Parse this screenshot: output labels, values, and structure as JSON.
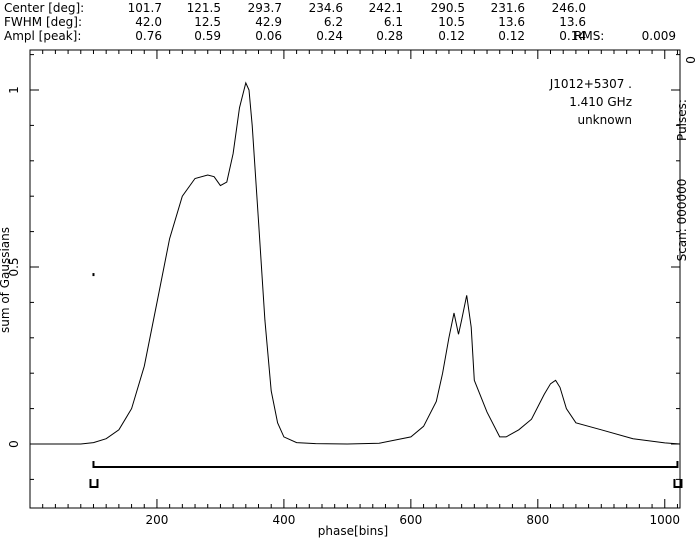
{
  "header": {
    "rows": [
      {
        "label": "Center [deg]:",
        "values": [
          "101.7",
          "121.5",
          "293.7",
          "234.6",
          "242.1",
          "290.5",
          "231.6",
          "246.0"
        ]
      },
      {
        "label": "FWHM  [deg]:",
        "values": [
          "42.0",
          "12.5",
          "42.9",
          "6.2",
          "6.1",
          "10.5",
          "13.6",
          "13.6"
        ]
      },
      {
        "label": "Ampl  [peak]:",
        "values": [
          "0.76",
          "0.59",
          "0.06",
          "0.24",
          "0.28",
          "0.12",
          "0.12",
          "0.14"
        ]
      }
    ],
    "rms_label": "RMS:",
    "rms_value": "0.009"
  },
  "annotations": {
    "source": "J1012+5307 .",
    "frequency": "1.410 GHz",
    "observer": "unknown",
    "side_zero": "0",
    "side_pulses": "Pulses:",
    "side_scan": "Scan: 000000"
  },
  "chart_data": {
    "type": "line",
    "xlabel": "phase[bins]",
    "ylabel": "sum of Gaussians",
    "xlim": [
      0,
      1024
    ],
    "ylim": [
      -0.2,
      1.1
    ],
    "x_ticks": [
      200,
      400,
      600,
      800,
      1000
    ],
    "y_ticks": [
      0,
      0.5,
      1
    ],
    "y_tick_labels": [
      "0",
      "0.5",
      "1"
    ],
    "x_tick_labels": [
      "200",
      "400",
      "600",
      "800",
      "1000"
    ],
    "series": [
      {
        "x": [
          0,
          80,
          100,
          120,
          140,
          160,
          180,
          200,
          220,
          240,
          260,
          280,
          290,
          300,
          310,
          320,
          330,
          340,
          345,
          350,
          360,
          370,
          380,
          390,
          400,
          420,
          450,
          500,
          550,
          600,
          620,
          640,
          650,
          660,
          668,
          675,
          680,
          688,
          695,
          700,
          720,
          740,
          750,
          770,
          790,
          810,
          820,
          828,
          835,
          845,
          860,
          900,
          950,
          1000,
          1024
        ],
        "y": [
          0,
          0,
          0.004,
          0.015,
          0.04,
          0.1,
          0.22,
          0.4,
          0.58,
          0.7,
          0.75,
          0.76,
          0.755,
          0.73,
          0.74,
          0.82,
          0.95,
          1.02,
          1.0,
          0.9,
          0.63,
          0.35,
          0.15,
          0.06,
          0.02,
          0.004,
          0.001,
          0,
          0.002,
          0.02,
          0.05,
          0.12,
          0.2,
          0.3,
          0.37,
          0.31,
          0.35,
          0.42,
          0.33,
          0.18,
          0.09,
          0.02,
          0.02,
          0.04,
          0.07,
          0.14,
          0.17,
          0.18,
          0.16,
          0.1,
          0.06,
          0.04,
          0.015,
          0.003,
          0
        ]
      }
    ],
    "span_start": 100,
    "span_end": 1020,
    "span_y": -0.065,
    "marker": {
      "x": 100,
      "y": 0.48
    }
  }
}
